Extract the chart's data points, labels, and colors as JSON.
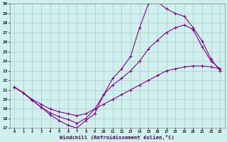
{
  "xlabel": "Windchill (Refroidissement éolien,°C)",
  "xlim": [
    -0.5,
    23.5
  ],
  "ylim": [
    17,
    30
  ],
  "xticks": [
    0,
    1,
    2,
    3,
    4,
    5,
    6,
    7,
    8,
    9,
    10,
    11,
    12,
    13,
    14,
    15,
    16,
    17,
    18,
    19,
    20,
    21,
    22,
    23
  ],
  "yticks": [
    17,
    18,
    19,
    20,
    21,
    22,
    23,
    24,
    25,
    26,
    27,
    28,
    29,
    30
  ],
  "bg_color": "#cff0ec",
  "line_color": "#880088",
  "grid_color": "#aacccc",
  "line1_x": [
    0,
    1,
    2,
    3,
    4,
    5,
    6,
    7,
    8,
    9,
    10,
    11,
    12,
    13,
    14,
    15,
    16,
    17,
    18,
    19,
    20,
    21,
    22,
    23
  ],
  "line1_y": [
    21.3,
    20.7,
    19.9,
    19.2,
    18.4,
    17.8,
    17.3,
    17.0,
    17.8,
    18.5,
    20.5,
    22.2,
    23.2,
    24.5,
    27.5,
    30.0,
    30.2,
    29.5,
    29.0,
    28.7,
    27.5,
    26.1,
    24.2,
    23.0
  ],
  "line2_x": [
    0,
    1,
    2,
    3,
    4,
    5,
    6,
    7,
    8,
    9,
    10,
    11,
    12,
    13,
    14,
    15,
    16,
    17,
    18,
    19,
    20,
    21,
    22,
    23
  ],
  "line2_y": [
    21.3,
    20.7,
    19.9,
    19.2,
    18.6,
    18.2,
    17.9,
    17.5,
    18.0,
    19.0,
    20.5,
    21.5,
    22.2,
    23.0,
    24.0,
    25.3,
    26.2,
    27.0,
    27.5,
    27.8,
    27.3,
    25.5,
    24.0,
    23.2
  ],
  "line3_x": [
    0,
    1,
    2,
    3,
    4,
    5,
    6,
    7,
    8,
    9,
    10,
    11,
    12,
    13,
    14,
    15,
    16,
    17,
    18,
    19,
    20,
    21,
    22,
    23
  ],
  "line3_y": [
    21.3,
    20.7,
    20.0,
    19.5,
    19.0,
    18.7,
    18.5,
    18.3,
    18.5,
    19.0,
    19.5,
    20.0,
    20.5,
    21.0,
    21.5,
    22.0,
    22.5,
    23.0,
    23.2,
    23.4,
    23.5,
    23.5,
    23.4,
    23.2
  ],
  "marker": "+"
}
